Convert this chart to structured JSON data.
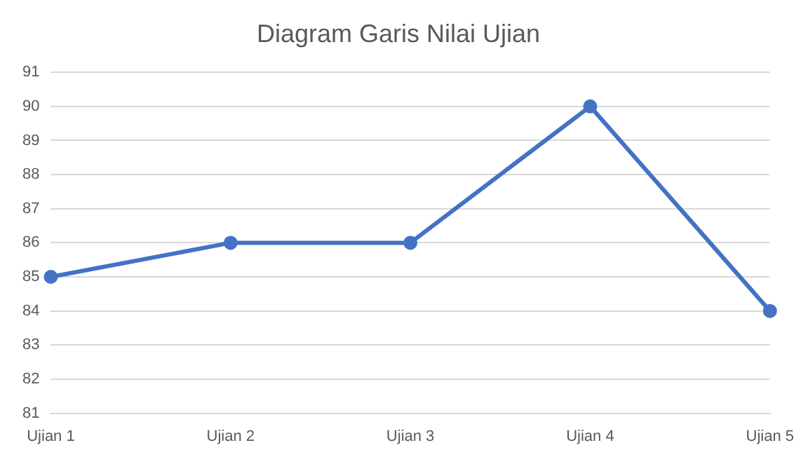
{
  "chart_data": {
    "type": "line",
    "title": "Diagram Garis Nilai Ujian",
    "categories": [
      "Ujian 1",
      "Ujian 2",
      "Ujian 3",
      "Ujian 4",
      "Ujian 5"
    ],
    "series": [
      {
        "color": "#4472c4",
        "values": [
          85,
          86,
          86,
          90,
          84
        ]
      }
    ],
    "ylim": [
      81,
      91
    ],
    "yticks": [
      81,
      82,
      83,
      84,
      85,
      86,
      87,
      88,
      89,
      90,
      91
    ],
    "grid": "y",
    "legend": false,
    "marker": "circle",
    "line_style": "solid"
  }
}
